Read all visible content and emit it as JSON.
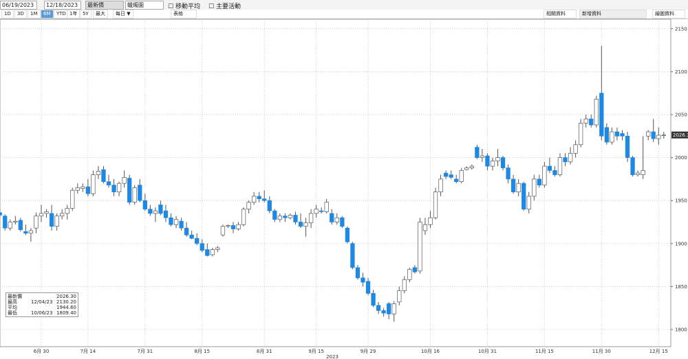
{
  "toolbar": {
    "start": "06/19/2023",
    "end": "12/18/2023",
    "price": "最新價",
    "style": "蠟燭圖",
    "ma": "移動平均",
    "events": "主要活動",
    "ranges": [
      "1D",
      "3D",
      "1M",
      "6M",
      "YTD",
      "1年",
      "5Y",
      "最大"
    ],
    "selected": "6M",
    "freq": "每日 ▼",
    "table": "表格",
    "related": "相關資料",
    "add": "新增資料",
    "draw": "繪圖資料"
  },
  "legend": [
    {
      "name": "最新價",
      "date": "",
      "value": "2026.30"
    },
    {
      "name": "最高",
      "date": "12/04/23",
      "value": "2130.20"
    },
    {
      "name": "平均",
      "date": "",
      "value": "1944.60"
    },
    {
      "name": "最低",
      "date": "10/06/23",
      "value": "1809.40"
    }
  ],
  "chart_data": {
    "type": "candlestick",
    "up_color": "#ffffff",
    "down_color": "#1e88e5",
    "year_label": "2023",
    "ylim": [
      1780,
      2161
    ],
    "yticks": [
      1800,
      1850,
      1900,
      1950,
      2000,
      2050,
      2100,
      2150
    ],
    "grid": true,
    "last_label": "2026.30",
    "categories": [
      null,
      null,
      null,
      null,
      null,
      null,
      null,
      null,
      null,
      "6月 30",
      null,
      null,
      null,
      null,
      null,
      null,
      null,
      null,
      "7月 14",
      null,
      null,
      null,
      null,
      null,
      null,
      null,
      null,
      null,
      null,
      "7月 31",
      null,
      null,
      null,
      null,
      null,
      null,
      null,
      null,
      null,
      null,
      "8月 15",
      null,
      null,
      null,
      null,
      null,
      null,
      null,
      null,
      null,
      null,
      null,
      "8月 31",
      null,
      null,
      null,
      null,
      null,
      null,
      null,
      null,
      null,
      "9月 15",
      null,
      null,
      null,
      null,
      null,
      null,
      null,
      null,
      null,
      "9月 29",
      null,
      null,
      null,
      null,
      null,
      null,
      null,
      null,
      null,
      null,
      null,
      "10月 16",
      null,
      null,
      null,
      null,
      null,
      null,
      null,
      null,
      null,
      null,
      "10月 31",
      null,
      null,
      null,
      null,
      null,
      null,
      null,
      null,
      null,
      null,
      "11月 15",
      null,
      null,
      null,
      null,
      null,
      null,
      null,
      null,
      null,
      null,
      "11月 30",
      null,
      null,
      null,
      null,
      null,
      null,
      null,
      null,
      null,
      null,
      "12月 15",
      null
    ],
    "ohlc": [
      [
        1958,
        1960,
        1934,
        1936
      ],
      [
        1936,
        1940,
        1930,
        1933
      ],
      [
        1932,
        1934,
        1915,
        1918
      ],
      [
        1918,
        1928,
        1915,
        1925
      ],
      [
        1925,
        1932,
        1922,
        1926
      ],
      [
        1927,
        1930,
        1914,
        1916
      ],
      [
        1914,
        1922,
        1910,
        1912
      ],
      [
        1912,
        1918,
        1902,
        1915
      ],
      [
        1918,
        1936,
        1912,
        1932
      ],
      [
        1932,
        1945,
        1925,
        1935
      ],
      [
        1935,
        1940,
        1930,
        1937
      ],
      [
        1935,
        1945,
        1915,
        1920
      ],
      [
        1920,
        1935,
        1915,
        1932
      ],
      [
        1932,
        1940,
        1928,
        1935
      ],
      [
        1935,
        1945,
        1928,
        1941
      ],
      [
        1941,
        1965,
        1938,
        1962
      ],
      [
        1962,
        1970,
        1958,
        1965
      ],
      [
        1964,
        1970,
        1960,
        1966
      ],
      [
        1966,
        1975,
        1955,
        1958
      ],
      [
        1958,
        1985,
        1955,
        1980
      ],
      [
        1980,
        1990,
        1975,
        1984
      ],
      [
        1986,
        1990,
        1970,
        1972
      ],
      [
        1972,
        1980,
        1965,
        1968
      ],
      [
        1968,
        1975,
        1955,
        1960
      ],
      [
        1960,
        1972,
        1955,
        1970
      ],
      [
        1970,
        1985,
        1965,
        1977
      ],
      [
        1976,
        1980,
        1945,
        1948
      ],
      [
        1948,
        1968,
        1945,
        1965
      ],
      [
        1968,
        1975,
        1948,
        1950
      ],
      [
        1950,
        1958,
        1938,
        1940
      ],
      [
        1940,
        1945,
        1932,
        1935
      ],
      [
        1935,
        1942,
        1925,
        1938
      ],
      [
        1945,
        1950,
        1933,
        1935
      ],
      [
        1938,
        1945,
        1925,
        1930
      ],
      [
        1930,
        1935,
        1920,
        1922
      ],
      [
        1922,
        1932,
        1918,
        1928
      ],
      [
        1926,
        1930,
        1915,
        1918
      ],
      [
        1918,
        1925,
        1908,
        1910
      ],
      [
        1910,
        1915,
        1905,
        1906
      ],
      [
        1906,
        1912,
        1898,
        1900
      ],
      [
        1900,
        1905,
        1890,
        1892
      ],
      [
        1893,
        1900,
        1885,
        1886
      ],
      [
        1887,
        1895,
        1885,
        1893
      ],
      [
        1893,
        1897,
        1890,
        1895
      ],
      [
        1910,
        1922,
        1908,
        1920
      ],
      [
        1920,
        1922,
        1918,
        1921
      ],
      [
        1921,
        1925,
        1912,
        1917
      ],
      [
        1917,
        1925,
        1915,
        1922
      ],
      [
        1922,
        1942,
        1920,
        1940
      ],
      [
        1940,
        1950,
        1935,
        1948
      ],
      [
        1948,
        1960,
        1945,
        1955
      ],
      [
        1955,
        1960,
        1948,
        1952
      ],
      [
        1952,
        1962,
        1948,
        1950
      ],
      [
        1950,
        1955,
        1935,
        1938
      ],
      [
        1938,
        1940,
        1925,
        1928
      ],
      [
        1928,
        1935,
        1925,
        1932
      ],
      [
        1932,
        1935,
        1925,
        1930
      ],
      [
        1930,
        1935,
        1928,
        1933
      ],
      [
        1933,
        1937,
        1922,
        1925
      ],
      [
        1925,
        1935,
        1918,
        1920
      ],
      [
        1920,
        1930,
        1908,
        1924
      ],
      [
        1924,
        1940,
        1918,
        1935
      ],
      [
        1935,
        1945,
        1930,
        1940
      ],
      [
        1938,
        1942,
        1935,
        1937
      ],
      [
        1937,
        1952,
        1935,
        1948
      ],
      [
        1935,
        1940,
        1922,
        1925
      ],
      [
        1925,
        1935,
        1922,
        1930
      ],
      [
        1930,
        1932,
        1918,
        1920
      ],
      [
        1918,
        1920,
        1900,
        1902
      ],
      [
        1900,
        1902,
        1870,
        1872
      ],
      [
        1872,
        1875,
        1858,
        1860
      ],
      [
        1860,
        1866,
        1850,
        1855
      ],
      [
        1856,
        1860,
        1840,
        1842
      ],
      [
        1842,
        1846,
        1826,
        1828
      ],
      [
        1828,
        1832,
        1818,
        1822
      ],
      [
        1822,
        1825,
        1815,
        1819
      ],
      [
        1830,
        1832,
        1812,
        1818
      ],
      [
        1818,
        1833,
        1809,
        1830
      ],
      [
        1832,
        1850,
        1828,
        1845
      ],
      [
        1845,
        1862,
        1842,
        1858
      ],
      [
        1858,
        1872,
        1855,
        1870
      ],
      [
        1872,
        1875,
        1865,
        1867
      ],
      [
        1868,
        1930,
        1865,
        1925
      ],
      [
        1915,
        1930,
        1910,
        1922
      ],
      [
        1922,
        1938,
        1918,
        1930
      ],
      [
        1930,
        1965,
        1928,
        1960
      ],
      [
        1960,
        1980,
        1955,
        1975
      ],
      [
        1982,
        1985,
        1975,
        1978
      ],
      [
        1980,
        1985,
        1975,
        1977
      ],
      [
        1975,
        1980,
        1970,
        1972
      ],
      [
        1972,
        1988,
        1970,
        1985
      ],
      [
        1986,
        1990,
        1985,
        1988
      ],
      [
        1988,
        1992,
        1986,
        1990
      ],
      [
        2012,
        2015,
        1998,
        2000
      ],
      [
        2000,
        2010,
        1995,
        2002
      ],
      [
        2002,
        2005,
        1985,
        1990
      ],
      [
        1990,
        2000,
        1985,
        1996
      ],
      [
        1996,
        2010,
        1990,
        2000
      ],
      [
        2000,
        2002,
        1985,
        1988
      ],
      [
        1988,
        1992,
        1970,
        1975
      ],
      [
        1975,
        1980,
        1958,
        1960
      ],
      [
        1960,
        1975,
        1955,
        1970
      ],
      [
        1970,
        1972,
        1938,
        1940
      ],
      [
        1940,
        1960,
        1935,
        1955
      ],
      [
        1955,
        1980,
        1950,
        1975
      ],
      [
        1975,
        1980,
        1965,
        1968
      ],
      [
        1968,
        1995,
        1965,
        1990
      ],
      [
        1990,
        2000,
        1982,
        1985
      ],
      [
        1985,
        1990,
        1978,
        1980
      ],
      [
        1980,
        2005,
        1978,
        2000
      ],
      [
        2000,
        2005,
        1990,
        1995
      ],
      [
        1995,
        2012,
        1992,
        2005
      ],
      [
        2005,
        2020,
        2000,
        2015
      ],
      [
        2015,
        2045,
        2012,
        2040
      ],
      [
        2040,
        2050,
        2035,
        2045
      ],
      [
        2045,
        2050,
        2035,
        2038
      ],
      [
        2038,
        2072,
        2035,
        2068
      ],
      [
        2075,
        2130,
        2020,
        2025
      ],
      [
        2035,
        2040,
        2015,
        2018
      ],
      [
        2018,
        2035,
        2015,
        2030
      ],
      [
        2030,
        2035,
        2020,
        2025
      ],
      [
        2028,
        2032,
        2020,
        2025
      ],
      [
        2025,
        2030,
        1995,
        2000
      ],
      [
        2000,
        2002,
        1978,
        1980
      ],
      [
        1980,
        1985,
        1978,
        1982
      ],
      [
        1980,
        2025,
        1975,
        1985
      ],
      [
        2025,
        2032,
        2020,
        2030
      ],
      [
        2030,
        2045,
        2018,
        2022
      ],
      [
        2022,
        2035,
        2015,
        2026
      ],
      [
        2026,
        2030,
        2022,
        2026.3
      ]
    ]
  }
}
